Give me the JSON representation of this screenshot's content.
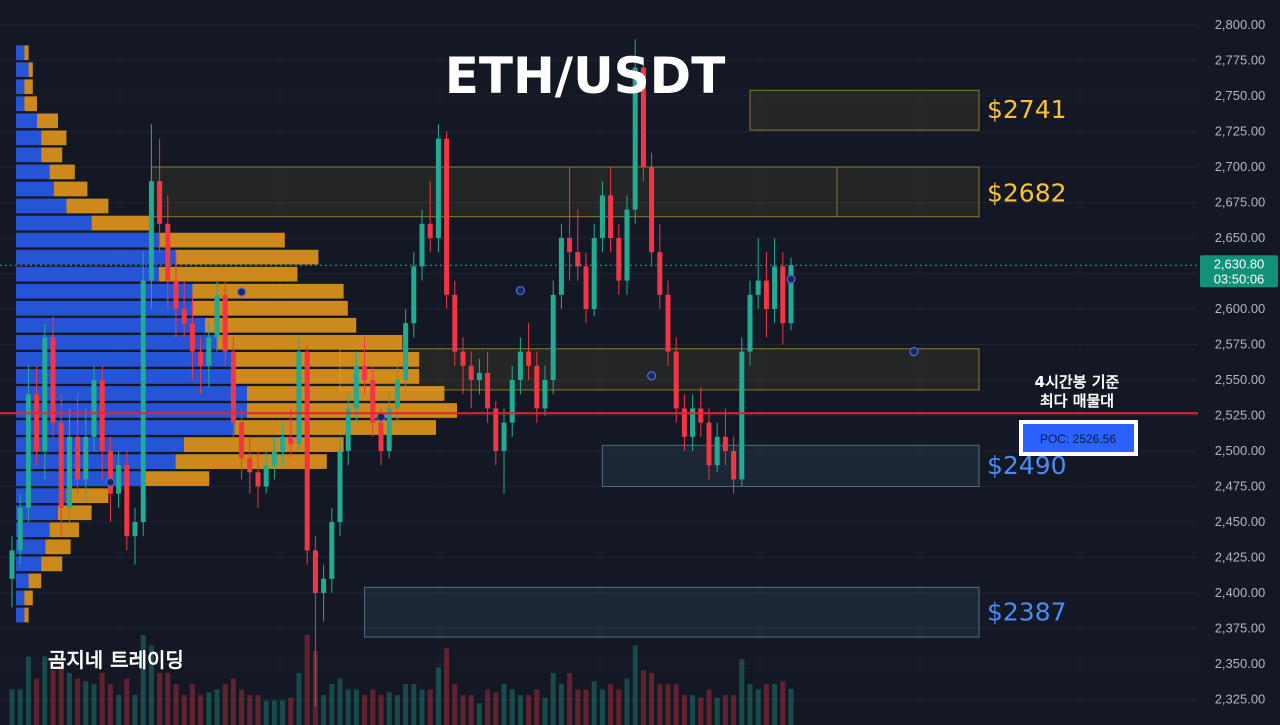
{
  "chart_data": {
    "type": "candlestick",
    "title": "ETH/USDT",
    "ylim": [
      2312,
      2812
    ],
    "y_ticks": [
      "2,800.00",
      "2,775.00",
      "2,750.00",
      "2,725.00",
      "2,700.00",
      "2,675.00",
      "2,650.00",
      "2,625.00",
      "2,600.00",
      "2,575.00",
      "2,550.00",
      "2,525.00",
      "2,500.00",
      "2,475.00",
      "2,450.00",
      "2,425.00",
      "2,400.00",
      "2,375.00",
      "2,350.00",
      "2,325.00"
    ],
    "y_tick_values": [
      2800,
      2775,
      2750,
      2725,
      2700,
      2675,
      2650,
      2625,
      2600,
      2575,
      2550,
      2525,
      2500,
      2475,
      2450,
      2425,
      2400,
      2375,
      2350,
      2325
    ],
    "current_price_label": "2,630.80",
    "countdown_label": "03:50:06",
    "current_price": 2630.8,
    "poc_label": "POC: 2526.56",
    "poc_price": 2526.56,
    "poc_note_line1": "4시간봉 기준",
    "poc_note_line2": "최다 매물대",
    "brand": "곰지네 트레이딩",
    "levels": [
      {
        "label": "$2741",
        "price": 2741,
        "color": "#f7c236"
      },
      {
        "label": "$2682",
        "price": 2682,
        "color": "#f7c236"
      },
      {
        "label": "$2490",
        "price": 2490,
        "color": "#4a8cf5"
      },
      {
        "label": "$2387",
        "price": 2387,
        "color": "#4a8cf5"
      }
    ],
    "zones": [
      {
        "kind": "supply",
        "from": 2726,
        "to": 2754,
        "start_bar": 90
      },
      {
        "kind": "supply",
        "from": 2665,
        "to": 2700,
        "start_bar": 17
      },
      {
        "kind": "supply",
        "from": 2543,
        "to": 2572,
        "start_bar": 40
      },
      {
        "kind": "demand",
        "from": 2475,
        "to": 2504,
        "start_bar": 72
      },
      {
        "kind": "demand",
        "from": 2369,
        "to": 2404,
        "start_bar": 43
      }
    ],
    "candles": [
      {
        "o": 2410,
        "h": 2440,
        "l": 2390,
        "c": 2430
      },
      {
        "o": 2430,
        "h": 2470,
        "l": 2420,
        "c": 2460
      },
      {
        "o": 2460,
        "h": 2560,
        "l": 2450,
        "c": 2540
      },
      {
        "o": 2540,
        "h": 2560,
        "l": 2490,
        "c": 2500
      },
      {
        "o": 2500,
        "h": 2590,
        "l": 2480,
        "c": 2580
      },
      {
        "o": 2580,
        "h": 2595,
        "l": 2510,
        "c": 2520
      },
      {
        "o": 2520,
        "h": 2540,
        "l": 2440,
        "c": 2460
      },
      {
        "o": 2460,
        "h": 2530,
        "l": 2450,
        "c": 2510
      },
      {
        "o": 2510,
        "h": 2540,
        "l": 2470,
        "c": 2480
      },
      {
        "o": 2480,
        "h": 2530,
        "l": 2465,
        "c": 2510
      },
      {
        "o": 2510,
        "h": 2560,
        "l": 2500,
        "c": 2550
      },
      {
        "o": 2550,
        "h": 2560,
        "l": 2480,
        "c": 2500
      },
      {
        "o": 2500,
        "h": 2510,
        "l": 2450,
        "c": 2470
      },
      {
        "o": 2470,
        "h": 2500,
        "l": 2460,
        "c": 2490
      },
      {
        "o": 2490,
        "h": 2500,
        "l": 2430,
        "c": 2440
      },
      {
        "o": 2440,
        "h": 2460,
        "l": 2420,
        "c": 2450
      },
      {
        "o": 2450,
        "h": 2640,
        "l": 2440,
        "c": 2620
      },
      {
        "o": 2620,
        "h": 2730,
        "l": 2600,
        "c": 2690
      },
      {
        "o": 2690,
        "h": 2720,
        "l": 2640,
        "c": 2660
      },
      {
        "o": 2660,
        "h": 2680,
        "l": 2600,
        "c": 2620
      },
      {
        "o": 2620,
        "h": 2640,
        "l": 2580,
        "c": 2600
      },
      {
        "o": 2600,
        "h": 2620,
        "l": 2580,
        "c": 2590
      },
      {
        "o": 2590,
        "h": 2610,
        "l": 2550,
        "c": 2570
      },
      {
        "o": 2570,
        "h": 2580,
        "l": 2540,
        "c": 2560
      },
      {
        "o": 2560,
        "h": 2590,
        "l": 2545,
        "c": 2580
      },
      {
        "o": 2580,
        "h": 2620,
        "l": 2570,
        "c": 2610
      },
      {
        "o": 2610,
        "h": 2620,
        "l": 2560,
        "c": 2570
      },
      {
        "o": 2570,
        "h": 2580,
        "l": 2510,
        "c": 2520
      },
      {
        "o": 2520,
        "h": 2530,
        "l": 2480,
        "c": 2495
      },
      {
        "o": 2495,
        "h": 2510,
        "l": 2470,
        "c": 2485
      },
      {
        "o": 2485,
        "h": 2500,
        "l": 2460,
        "c": 2475
      },
      {
        "o": 2475,
        "h": 2500,
        "l": 2470,
        "c": 2490
      },
      {
        "o": 2490,
        "h": 2510,
        "l": 2480,
        "c": 2500
      },
      {
        "o": 2500,
        "h": 2520,
        "l": 2490,
        "c": 2510
      },
      {
        "o": 2510,
        "h": 2530,
        "l": 2495,
        "c": 2505
      },
      {
        "o": 2505,
        "h": 2580,
        "l": 2500,
        "c": 2570
      },
      {
        "o": 2570,
        "h": 2575,
        "l": 2420,
        "c": 2430
      },
      {
        "o": 2430,
        "h": 2440,
        "l": 2320,
        "c": 2400
      },
      {
        "o": 2400,
        "h": 2420,
        "l": 2380,
        "c": 2410
      },
      {
        "o": 2410,
        "h": 2460,
        "l": 2400,
        "c": 2450
      },
      {
        "o": 2450,
        "h": 2510,
        "l": 2440,
        "c": 2500
      },
      {
        "o": 2500,
        "h": 2540,
        "l": 2490,
        "c": 2530
      },
      {
        "o": 2530,
        "h": 2570,
        "l": 2520,
        "c": 2560
      },
      {
        "o": 2560,
        "h": 2580,
        "l": 2540,
        "c": 2550
      },
      {
        "o": 2550,
        "h": 2560,
        "l": 2510,
        "c": 2520
      },
      {
        "o": 2520,
        "h": 2530,
        "l": 2490,
        "c": 2500
      },
      {
        "o": 2500,
        "h": 2540,
        "l": 2495,
        "c": 2530
      },
      {
        "o": 2530,
        "h": 2560,
        "l": 2520,
        "c": 2550
      },
      {
        "o": 2550,
        "h": 2600,
        "l": 2540,
        "c": 2590
      },
      {
        "o": 2590,
        "h": 2640,
        "l": 2580,
        "c": 2630
      },
      {
        "o": 2630,
        "h": 2670,
        "l": 2620,
        "c": 2660
      },
      {
        "o": 2660,
        "h": 2690,
        "l": 2640,
        "c": 2650
      },
      {
        "o": 2650,
        "h": 2730,
        "l": 2640,
        "c": 2720
      },
      {
        "o": 2720,
        "h": 2725,
        "l": 2600,
        "c": 2610
      },
      {
        "o": 2610,
        "h": 2620,
        "l": 2560,
        "c": 2570
      },
      {
        "o": 2570,
        "h": 2580,
        "l": 2540,
        "c": 2560
      },
      {
        "o": 2560,
        "h": 2570,
        "l": 2530,
        "c": 2550
      },
      {
        "o": 2550,
        "h": 2565,
        "l": 2540,
        "c": 2555
      },
      {
        "o": 2555,
        "h": 2570,
        "l": 2520,
        "c": 2530
      },
      {
        "o": 2530,
        "h": 2535,
        "l": 2490,
        "c": 2500
      },
      {
        "o": 2500,
        "h": 2530,
        "l": 2470,
        "c": 2520
      },
      {
        "o": 2520,
        "h": 2560,
        "l": 2510,
        "c": 2550
      },
      {
        "o": 2550,
        "h": 2580,
        "l": 2540,
        "c": 2570
      },
      {
        "o": 2570,
        "h": 2590,
        "l": 2550,
        "c": 2560
      },
      {
        "o": 2560,
        "h": 2570,
        "l": 2520,
        "c": 2530
      },
      {
        "o": 2530,
        "h": 2560,
        "l": 2525,
        "c": 2550
      },
      {
        "o": 2550,
        "h": 2620,
        "l": 2540,
        "c": 2610
      },
      {
        "o": 2610,
        "h": 2660,
        "l": 2600,
        "c": 2650
      },
      {
        "o": 2650,
        "h": 2700,
        "l": 2620,
        "c": 2640
      },
      {
        "o": 2640,
        "h": 2670,
        "l": 2620,
        "c": 2630
      },
      {
        "o": 2630,
        "h": 2640,
        "l": 2590,
        "c": 2600
      },
      {
        "o": 2600,
        "h": 2660,
        "l": 2595,
        "c": 2650
      },
      {
        "o": 2650,
        "h": 2690,
        "l": 2640,
        "c": 2680
      },
      {
        "o": 2680,
        "h": 2700,
        "l": 2640,
        "c": 2650
      },
      {
        "o": 2650,
        "h": 2660,
        "l": 2610,
        "c": 2620
      },
      {
        "o": 2620,
        "h": 2680,
        "l": 2610,
        "c": 2670
      },
      {
        "o": 2670,
        "h": 2790,
        "l": 2660,
        "c": 2770
      },
      {
        "o": 2770,
        "h": 2775,
        "l": 2690,
        "c": 2700
      },
      {
        "o": 2700,
        "h": 2710,
        "l": 2630,
        "c": 2640
      },
      {
        "o": 2640,
        "h": 2660,
        "l": 2600,
        "c": 2610
      },
      {
        "o": 2610,
        "h": 2620,
        "l": 2560,
        "c": 2570
      },
      {
        "o": 2570,
        "h": 2580,
        "l": 2520,
        "c": 2530
      },
      {
        "o": 2530,
        "h": 2540,
        "l": 2500,
        "c": 2510
      },
      {
        "o": 2510,
        "h": 2540,
        "l": 2500,
        "c": 2530
      },
      {
        "o": 2530,
        "h": 2545,
        "l": 2510,
        "c": 2520
      },
      {
        "o": 2520,
        "h": 2530,
        "l": 2480,
        "c": 2490
      },
      {
        "o": 2490,
        "h": 2520,
        "l": 2485,
        "c": 2510
      },
      {
        "o": 2510,
        "h": 2530,
        "l": 2490,
        "c": 2500
      },
      {
        "o": 2500,
        "h": 2510,
        "l": 2470,
        "c": 2480
      },
      {
        "o": 2480,
        "h": 2580,
        "l": 2475,
        "c": 2570
      },
      {
        "o": 2570,
        "h": 2620,
        "l": 2560,
        "c": 2610
      },
      {
        "o": 2610,
        "h": 2650,
        "l": 2600,
        "c": 2620
      },
      {
        "o": 2620,
        "h": 2640,
        "l": 2580,
        "c": 2600
      },
      {
        "o": 2600,
        "h": 2650,
        "l": 2590,
        "c": 2630
      },
      {
        "o": 2630,
        "h": 2640,
        "l": 2575,
        "c": 2590
      },
      {
        "o": 2590,
        "h": 2636,
        "l": 2585,
        "c": 2631
      }
    ],
    "volume_profile": [
      {
        "price": 2780,
        "buy": 0.02,
        "sell": 0.01
      },
      {
        "price": 2768,
        "buy": 0.03,
        "sell": 0.01
      },
      {
        "price": 2756,
        "buy": 0.02,
        "sell": 0.02
      },
      {
        "price": 2744,
        "buy": 0.02,
        "sell": 0.03
      },
      {
        "price": 2732,
        "buy": 0.05,
        "sell": 0.05
      },
      {
        "price": 2720,
        "buy": 0.06,
        "sell": 0.06
      },
      {
        "price": 2708,
        "buy": 0.06,
        "sell": 0.05
      },
      {
        "price": 2696,
        "buy": 0.08,
        "sell": 0.06
      },
      {
        "price": 2684,
        "buy": 0.09,
        "sell": 0.08
      },
      {
        "price": 2672,
        "buy": 0.12,
        "sell": 0.1
      },
      {
        "price": 2660,
        "buy": 0.18,
        "sell": 0.14
      },
      {
        "price": 2648,
        "buy": 0.34,
        "sell": 0.3
      },
      {
        "price": 2636,
        "buy": 0.38,
        "sell": 0.34
      },
      {
        "price": 2624,
        "buy": 0.34,
        "sell": 0.33
      },
      {
        "price": 2612,
        "buy": 0.42,
        "sell": 0.36
      },
      {
        "price": 2600,
        "buy": 0.42,
        "sell": 0.37
      },
      {
        "price": 2588,
        "buy": 0.45,
        "sell": 0.36
      },
      {
        "price": 2576,
        "buy": 0.48,
        "sell": 0.44
      },
      {
        "price": 2564,
        "buy": 0.52,
        "sell": 0.44
      },
      {
        "price": 2552,
        "buy": 0.52,
        "sell": 0.44
      },
      {
        "price": 2540,
        "buy": 0.55,
        "sell": 0.47
      },
      {
        "price": 2528,
        "buy": 0.55,
        "sell": 0.5
      },
      {
        "price": 2516,
        "buy": 0.52,
        "sell": 0.48
      },
      {
        "price": 2504,
        "buy": 0.4,
        "sell": 0.38
      },
      {
        "price": 2492,
        "buy": 0.38,
        "sell": 0.36
      },
      {
        "price": 2480,
        "buy": 0.3,
        "sell": 0.16
      },
      {
        "price": 2468,
        "buy": 0.12,
        "sell": 0.1
      },
      {
        "price": 2456,
        "buy": 0.1,
        "sell": 0.08
      },
      {
        "price": 2444,
        "buy": 0.08,
        "sell": 0.07
      },
      {
        "price": 2432,
        "buy": 0.07,
        "sell": 0.06
      },
      {
        "price": 2420,
        "buy": 0.06,
        "sell": 0.05
      },
      {
        "price": 2408,
        "buy": 0.03,
        "sell": 0.03
      },
      {
        "price": 2396,
        "buy": 0.02,
        "sell": 0.02
      },
      {
        "price": 2384,
        "buy": 0.02,
        "sell": 0.01
      }
    ],
    "grid": true,
    "legend": "none"
  }
}
